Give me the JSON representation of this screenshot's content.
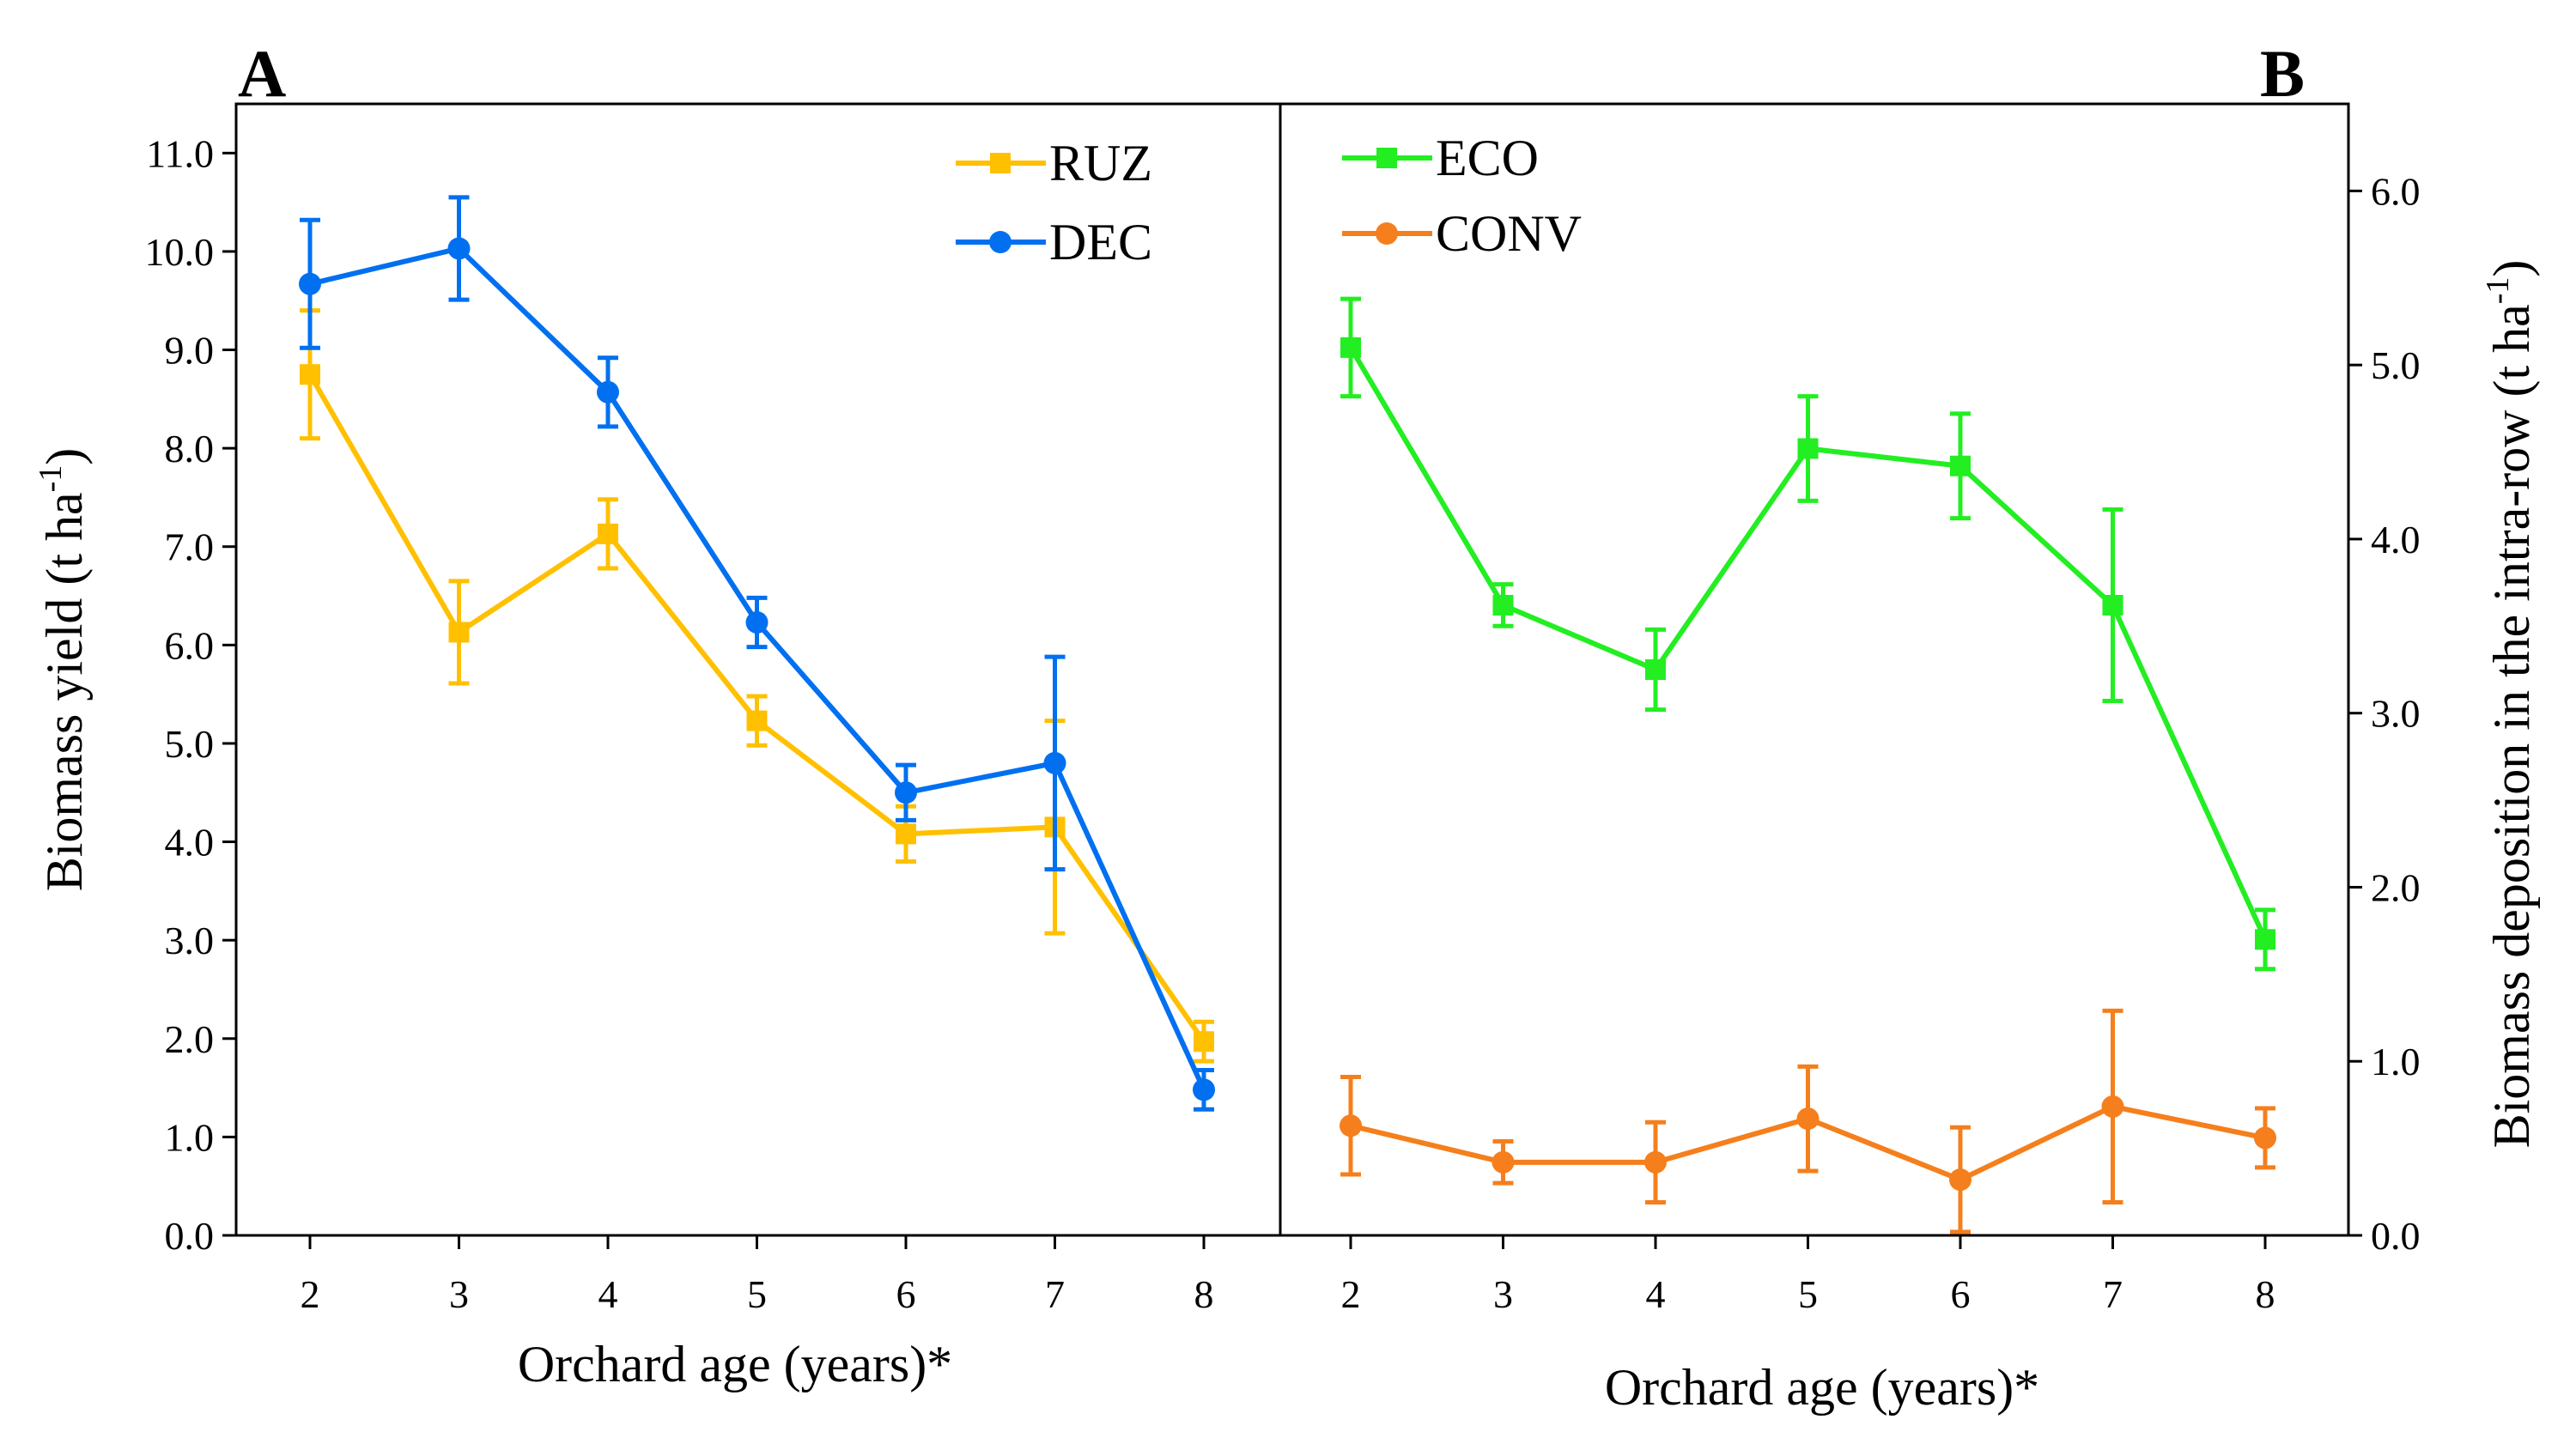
{
  "chart_data": [
    {
      "panel": "A",
      "type": "line",
      "xlabel": "Orchard age (years)*",
      "ylabel": "Biomass yield (t ha",
      "ylabel_sup": "-1",
      "ylabel_tail": ")",
      "ylim": [
        0,
        11.5
      ],
      "yticks": [
        "0.0",
        "1.0",
        "2.0",
        "3.0",
        "4.0",
        "5.0",
        "6.0",
        "7.0",
        "8.0",
        "9.0",
        "10.0",
        "11.0"
      ],
      "categories": [
        "2",
        "3",
        "4",
        "5",
        "6",
        "7",
        "8"
      ],
      "legend_position": "top-right",
      "series": [
        {
          "name": "RUZ",
          "color": "#FFC000",
          "marker": "square",
          "values": [
            8.75,
            6.13,
            7.13,
            5.23,
            4.08,
            4.15,
            1.97
          ],
          "errors": [
            0.65,
            0.52,
            0.35,
            0.25,
            0.28,
            1.08,
            0.2
          ]
        },
        {
          "name": "DEC",
          "color": "#0070F0",
          "marker": "circle",
          "values": [
            9.67,
            10.03,
            8.57,
            6.23,
            4.5,
            4.8,
            1.48
          ],
          "errors": [
            0.65,
            0.52,
            0.35,
            0.25,
            0.28,
            1.08,
            0.2
          ]
        }
      ]
    },
    {
      "panel": "B",
      "type": "line",
      "xlabel": "Orchard age (years)*",
      "ylabel": "Biomass deposition in the intra-row (t ha",
      "ylabel_sup": "-1",
      "ylabel_tail": ")",
      "ylim": [
        0,
        6.5
      ],
      "yticks": [
        "0.0",
        "1.0",
        "2.0",
        "3.0",
        "4.0",
        "5.0",
        "6.0"
      ],
      "categories": [
        "2",
        "3",
        "4",
        "5",
        "6",
        "7",
        "8"
      ],
      "legend_position": "top-left",
      "series": [
        {
          "name": "ECO",
          "color": "#22EE22",
          "marker": "square",
          "values": [
            5.1,
            3.62,
            3.25,
            4.52,
            4.42,
            3.62,
            1.7
          ],
          "errors": [
            0.28,
            0.12,
            0.23,
            0.3,
            0.3,
            0.55,
            0.17
          ]
        },
        {
          "name": "CONV",
          "color": "#F57F1C",
          "marker": "circle",
          "values": [
            0.63,
            0.42,
            0.42,
            0.67,
            0.32,
            0.74,
            0.56
          ],
          "errors": [
            0.28,
            0.12,
            0.23,
            0.3,
            0.3,
            0.55,
            0.17
          ]
        }
      ]
    }
  ]
}
